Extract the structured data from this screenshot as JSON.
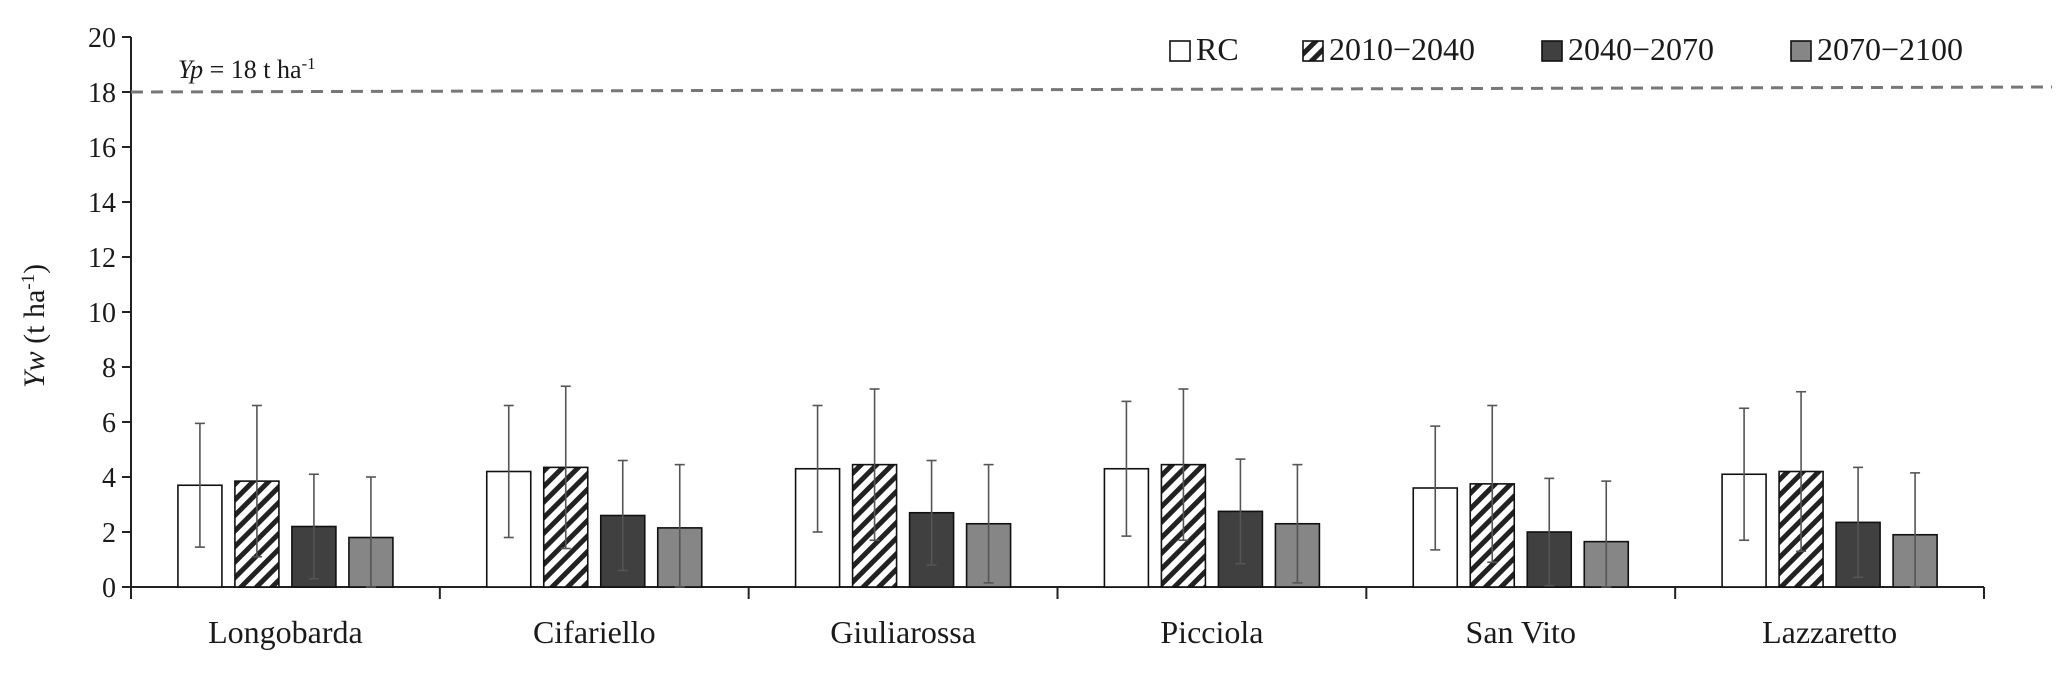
{
  "chart_data": {
    "type": "bar",
    "ylabel_italic": "Yw",
    "ylabel_rest": " (t ha",
    "ylabel_sup": "-1",
    "ylabel_close": ")",
    "ylim": [
      0,
      20
    ],
    "yticks": [
      0,
      2,
      4,
      6,
      8,
      10,
      12,
      14,
      16,
      18,
      20
    ],
    "categories": [
      "Longobarda",
      "Cifariello",
      "Giuliarossa",
      "Picciola",
      "San Vito",
      "Lazzaretto"
    ],
    "series": [
      {
        "name": "RC",
        "style": "white",
        "values": [
          3.7,
          4.2,
          4.3,
          4.3,
          3.6,
          4.1
        ],
        "errors": [
          2.25,
          2.4,
          2.3,
          2.45,
          2.25,
          2.4
        ]
      },
      {
        "name": "2010−2040",
        "style": "hatched",
        "values": [
          3.85,
          4.35,
          4.45,
          4.45,
          3.75,
          4.2
        ],
        "errors": [
          2.75,
          2.95,
          2.75,
          2.75,
          2.85,
          2.9
        ]
      },
      {
        "name": "2040−2070",
        "style": "dark",
        "values": [
          2.2,
          2.6,
          2.7,
          2.75,
          2.0,
          2.35
        ],
        "errors": [
          1.9,
          2.0,
          1.9,
          1.9,
          1.95,
          2.0
        ]
      },
      {
        "name": "2070−2100",
        "style": "gray",
        "values": [
          1.8,
          2.15,
          2.3,
          2.3,
          1.65,
          1.9
        ],
        "errors": [
          2.2,
          2.3,
          2.15,
          2.15,
          2.2,
          2.25
        ]
      }
    ],
    "reference_line": {
      "value": 18,
      "label_italic": "Yp",
      "label_rest": " = 18 t ha",
      "label_sup": "-1",
      "style": "dashed"
    },
    "legend_position": "top-right",
    "grid": false,
    "colors": {
      "white": "#ffffff",
      "hatched": "#ffffff",
      "dark": "#404040",
      "gray": "#868686",
      "axis": "#222222",
      "reference": "#777777"
    }
  }
}
